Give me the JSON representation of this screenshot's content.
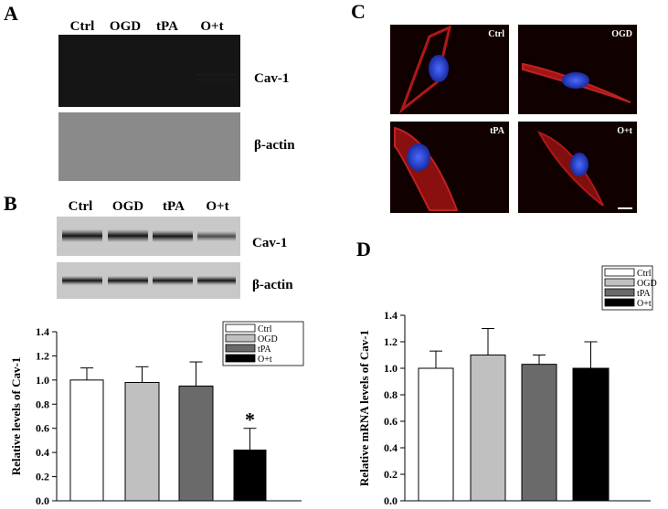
{
  "panels": {
    "A": {
      "label": "A",
      "lanes": [
        "Ctrl",
        "OGD",
        "tPA",
        "O+t"
      ],
      "bands": [
        "Cav-1",
        "β-actin"
      ]
    },
    "B": {
      "label": "B",
      "lanes": [
        "Ctrl",
        "OGD",
        "tPA",
        "O+t"
      ],
      "bands": [
        "Cav-1",
        "β-actin"
      ]
    },
    "C": {
      "label": "C",
      "images": [
        "Ctrl",
        "OGD",
        "tPA",
        "O+t"
      ]
    },
    "D": {
      "label": "D"
    }
  },
  "chart_data": [
    {
      "type": "bar",
      "y_label": "Relative levels of Cav-1",
      "ylim": [
        0,
        1.4
      ],
      "yticks": [
        {
          "value": 0,
          "label": "0.0"
        },
        0.2,
        0.4,
        0.6,
        0.8,
        {
          "value": 1,
          "label": "1.0"
        },
        1.2,
        1.4
      ],
      "series": [
        {
          "name": "Ctrl",
          "color": "#ffffff",
          "values": [
            1.0
          ],
          "errors": [
            0.1
          ]
        },
        {
          "name": "OGD",
          "color": "#c0c0c0",
          "values": [
            0.98
          ],
          "errors": [
            0.13
          ]
        },
        {
          "name": "tPA",
          "color": "#6a6a6a",
          "values": [
            0.95
          ],
          "errors": [
            0.2
          ]
        },
        {
          "name": "O+t",
          "color": "#000000",
          "values": [
            0.42
          ],
          "errors": [
            0.18
          ]
        }
      ],
      "annotation": "*"
    },
    {
      "type": "bar",
      "y_label": "Relative mRNA levels of Cav-1",
      "ylim": [
        0,
        1.4
      ],
      "yticks": [
        {
          "value": 0,
          "label": "0.0"
        },
        0.2,
        0.4,
        0.6,
        0.8,
        {
          "value": 1,
          "label": "1.0"
        },
        1.2,
        1.4
      ],
      "series": [
        {
          "name": "Ctrl",
          "color": "#ffffff",
          "values": [
            1.0
          ],
          "errors": [
            0.13
          ]
        },
        {
          "name": "OGD",
          "color": "#c0c0c0",
          "values": [
            1.1
          ],
          "errors": [
            0.2
          ]
        },
        {
          "name": "tPA",
          "color": "#6a6a6a",
          "values": [
            1.03
          ],
          "errors": [
            0.07
          ]
        },
        {
          "name": "O+t",
          "color": "#000000",
          "values": [
            1.0
          ],
          "errors": [
            0.2
          ]
        }
      ]
    }
  ]
}
